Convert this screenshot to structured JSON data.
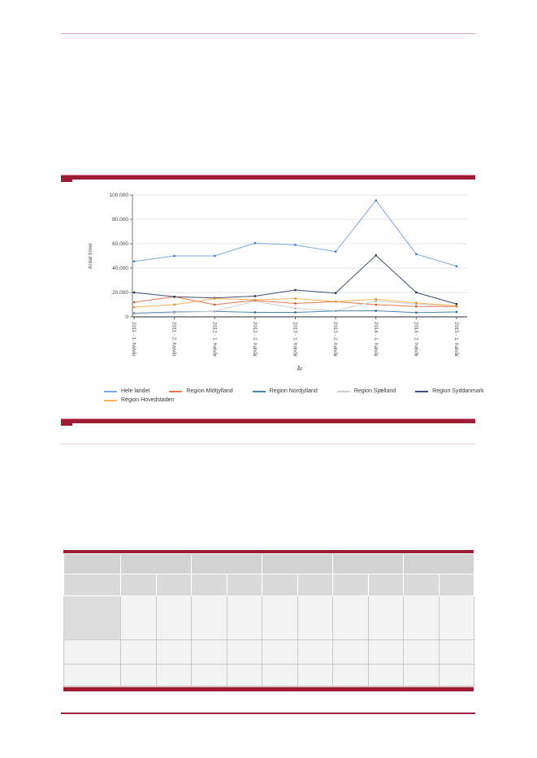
{
  "page": {
    "background": "#ffffff",
    "accent_bar_color": "#9e1b34",
    "rule_pink_color": "#e2a4b8",
    "rule_light_pink_color": "#f0ccd6",
    "rule_red_color": "#a02244"
  },
  "chart_data": {
    "type": "line",
    "title": "",
    "xlabel": "År",
    "ylabel": "Antal timer",
    "ylim": [
      0,
      100000
    ],
    "grid": true,
    "legend_position": "bottom",
    "y_ticks": [
      0,
      20000,
      40000,
      60000,
      80000,
      100000
    ],
    "y_tick_labels": [
      "0",
      "20.000",
      "40.000",
      "60.000",
      "80.000",
      "100.000"
    ],
    "categories": [
      "2011 - 1. halvår",
      "2011 - 2. halvår",
      "2012 - 1. halvår",
      "2012 - 2. halvår",
      "2013 - 1. halvår",
      "2013 - 2. halvår",
      "2014 - 1. halvår",
      "2014 - 2. halvår",
      "2015 - 1. halvår"
    ],
    "series": [
      {
        "name": "Hele landet",
        "color": "#7ba7e0",
        "marker_color": "#4a7cc2",
        "values": [
          45500,
          50000,
          50000,
          60500,
          59000,
          53500,
          95500,
          51500,
          41500
        ]
      },
      {
        "name": "Region Midtjylland",
        "color": "#e07850",
        "marker_color": "#c25a32",
        "values": [
          12000,
          16500,
          10000,
          13500,
          11000,
          12500,
          10000,
          8500,
          8500
        ]
      },
      {
        "name": "Region Nordjylland",
        "color": "#4a87ad",
        "marker_color": "#2e6a8e",
        "values": [
          3000,
          4000,
          4500,
          3700,
          3700,
          4800,
          5000,
          3500,
          4000
        ]
      },
      {
        "name": "Region Sjælland",
        "color": "#cccccc",
        "marker_color": "#b3b3b3",
        "values": [
          2500,
          3500,
          4500,
          13000,
          7000,
          5000,
          13000,
          10500,
          9000
        ]
      },
      {
        "name": "Region Syddanmark",
        "color": "#3d4d6e",
        "marker_color": "#263550",
        "values": [
          20000,
          16500,
          15500,
          17000,
          22000,
          19500,
          50500,
          20000,
          10500
        ]
      },
      {
        "name": "Region Hovedstaden",
        "color": "#f5b355",
        "marker_color": "#d89430",
        "values": [
          8000,
          10000,
          15000,
          14000,
          15000,
          12500,
          14500,
          11500,
          9000
        ]
      }
    ],
    "legend_rows": [
      [
        "Hele landet",
        "Region Midtjylland",
        "Region Nordjylland",
        "Region Sjælland",
        "Region Syddanmark"
      ],
      [
        "Region Hovedstaden"
      ]
    ]
  },
  "table": {
    "header_group_row": [
      "",
      "",
      "",
      "",
      "",
      ""
    ],
    "header_col_row": [
      "",
      "",
      "",
      "",
      "",
      "",
      "",
      "",
      "",
      "",
      ""
    ],
    "rows": [
      [
        "",
        "",
        "",
        "",
        "",
        "",
        "",
        "",
        "",
        "",
        ""
      ],
      [
        "",
        "",
        "",
        "",
        "",
        "",
        "",
        "",
        "",
        "",
        ""
      ],
      [
        "",
        "",
        "",
        "",
        "",
        "",
        "",
        "",
        "",
        "",
        ""
      ]
    ]
  }
}
